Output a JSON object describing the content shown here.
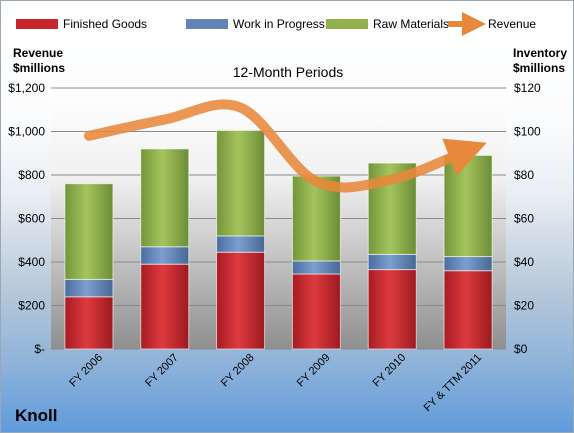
{
  "company": "Knoll",
  "chart_data": {
    "type": "bar",
    "stacked": true,
    "title": "12-Month Periods",
    "categories": [
      "FY 2006",
      "FY 2007",
      "FY 2008",
      "FY 2009",
      "FY 2010",
      "FY & TTM 2011"
    ],
    "y_left": {
      "label": "Revenue $millions",
      "label_lines": [
        "Revenue",
        "$millions"
      ],
      "ticks": [
        "$-",
        "$200",
        "$400",
        "$600",
        "$800",
        "$1,000",
        "$1,200"
      ],
      "ylim": [
        0,
        1200
      ]
    },
    "y_right": {
      "label": "Inventory $millions",
      "label_lines": [
        "Inventory",
        "$millions"
      ],
      "ticks": [
        "$0",
        "$20",
        "$40",
        "$60",
        "$80",
        "$100",
        "$120"
      ],
      "ylim": [
        0,
        120
      ]
    },
    "series": [
      {
        "name": "Finished Goods",
        "axis": "right",
        "color": "#c8262b",
        "values": [
          24,
          39,
          44.5,
          34.5,
          36.5,
          36
        ]
      },
      {
        "name": "Work in Progress",
        "axis": "right",
        "color": "#5f84b8",
        "values": [
          8,
          8,
          7.5,
          6,
          7,
          6.5
        ]
      },
      {
        "name": "Raw Materials",
        "axis": "right",
        "color": "#8fb04a",
        "values": [
          44,
          45,
          48.5,
          39,
          42,
          46.5
        ]
      },
      {
        "name": "Revenue",
        "axis": "left",
        "type": "line",
        "color": "#e8883a",
        "values": [
          980,
          1055,
          1110,
          770,
          780,
          915
        ]
      }
    ],
    "legend": "top",
    "grid": true
  }
}
